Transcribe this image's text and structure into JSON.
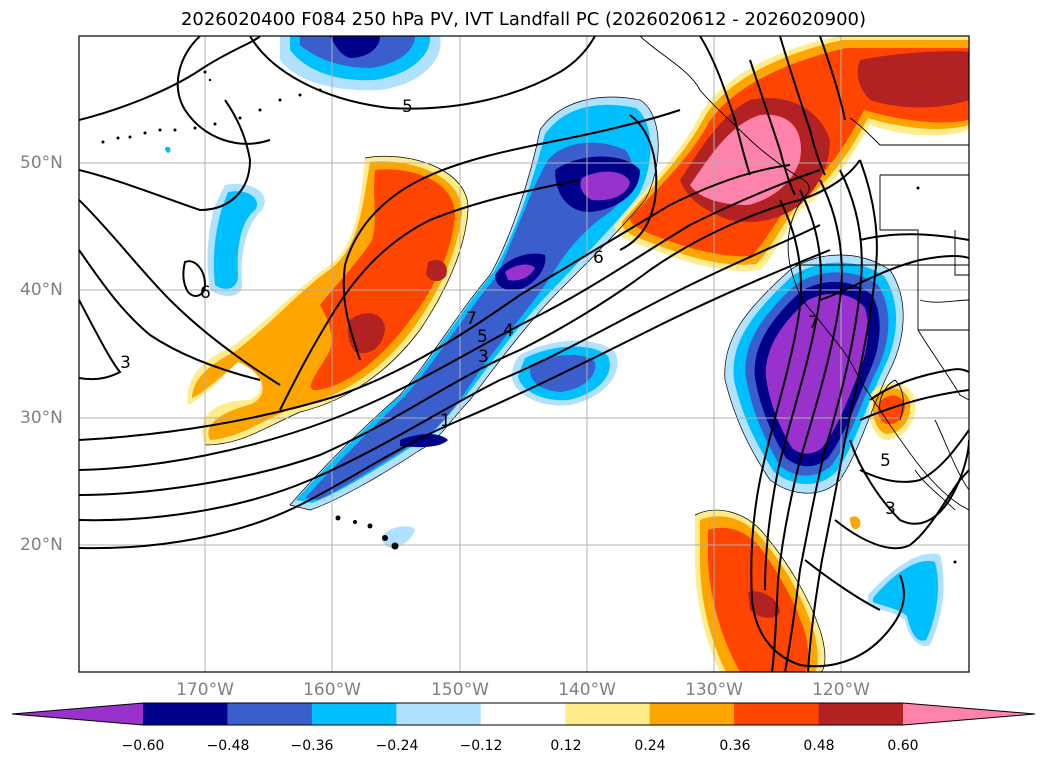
{
  "title": "2026020400 F084 250 hPa PV, IVT Landfall PC (2026020612 - 2026020900)",
  "lon_labels": [
    "170°W",
    "160°W",
    "150°W",
    "140°W",
    "130°W",
    "120°W"
  ],
  "lat_labels": [
    "50°N",
    "40°N",
    "30°N",
    "20°N"
  ],
  "colorbar": {
    "tick_labels": [
      "−0.60",
      "−0.48",
      "−0.36",
      "−0.24",
      "−0.12",
      "0.12",
      "0.24",
      "0.36",
      "0.48",
      "0.60"
    ],
    "colors": [
      "#9932cc",
      "#00008b",
      "#3a5fcd",
      "#00bfff",
      "#b0e2ff",
      "#ffffff",
      "#ffec8b",
      "#ffa500",
      "#ff4500",
      "#b22222",
      "#ff82ab"
    ]
  },
  "contour_labels": [
    "5",
    "6",
    "7",
    "5",
    "4",
    "3",
    "1",
    "3",
    "6",
    "5",
    "3",
    "7"
  ],
  "map": {
    "lon_range": [
      -180,
      -110
    ],
    "lat_range": [
      10,
      60
    ],
    "gridlines": true,
    "coastlines": true
  }
}
